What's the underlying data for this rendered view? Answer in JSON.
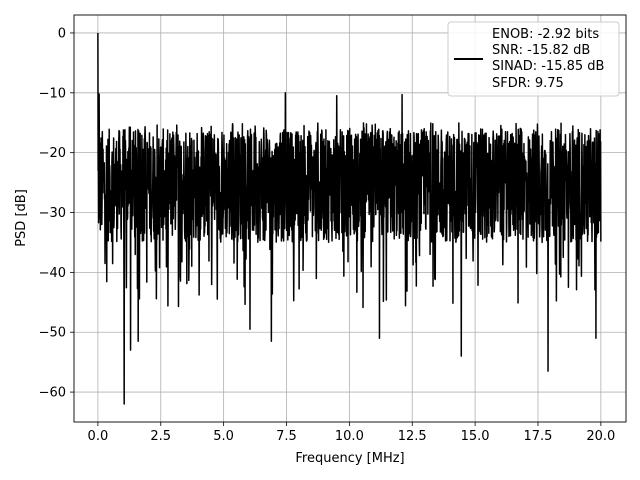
{
  "chart_data": {
    "type": "line",
    "xlabel": "Frequency [MHz]",
    "ylabel": "PSD [dB]",
    "xlim": [
      -0.95,
      21.0
    ],
    "ylim": [
      -65.0,
      3.0
    ],
    "xticks": [
      0.0,
      2.5,
      5.0,
      7.5,
      10.0,
      12.5,
      15.0,
      17.5,
      20.0
    ],
    "xtick_labels": [
      "0.0",
      "2.5",
      "5.0",
      "7.5",
      "10.0",
      "12.5",
      "15.0",
      "17.5",
      "20.0"
    ],
    "yticks": [
      0,
      -10,
      -20,
      -30,
      -40,
      -50,
      -60
    ],
    "ytick_labels": [
      "0",
      "−10",
      "−20",
      "−30",
      "−40",
      "−50",
      "−60"
    ],
    "grid": true,
    "legend_position": "upper right",
    "line_color": "#000000",
    "series": [
      {
        "name_lines": [
          "ENOB: -2.92 bits",
          "SNR: -15.82 dB",
          "SINAD: -15.85 dB",
          "SFDR: 9.75"
        ],
        "x_start": 0.0,
        "x_end": 20.0,
        "num_points": 2048,
        "noise_floor_range": [
          -35,
          -16
        ],
        "peaks": [
          {
            "x": 0.0,
            "y": 0.0
          },
          {
            "x": 0.05,
            "y": -10.2
          },
          {
            "x": 7.45,
            "y": -10.0
          },
          {
            "x": 9.5,
            "y": -10.5
          },
          {
            "x": 12.1,
            "y": -10.3
          }
        ],
        "troughs": [
          {
            "x": 1.05,
            "y": -62.0
          },
          {
            "x": 1.3,
            "y": -53.0
          },
          {
            "x": 1.6,
            "y": -51.5
          },
          {
            "x": 6.05,
            "y": -49.5
          },
          {
            "x": 6.9,
            "y": -51.5
          },
          {
            "x": 11.2,
            "y": -51.0
          },
          {
            "x": 14.45,
            "y": -54.0
          },
          {
            "x": 17.9,
            "y": -56.5
          },
          {
            "x": 19.8,
            "y": -51.0
          }
        ]
      }
    ]
  }
}
